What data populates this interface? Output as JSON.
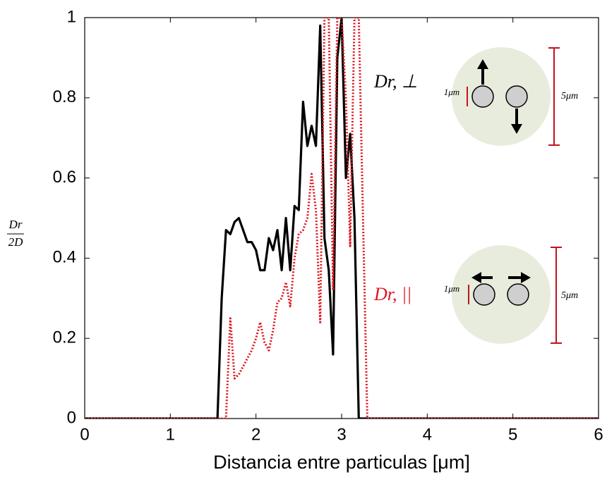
{
  "chart_data": {
    "type": "line",
    "xlabel": "Distancia entre particulas [μm]",
    "ylabel": {
      "numerator": "Dr",
      "denominator": "2D"
    },
    "x": [
      0,
      0.5,
      1,
      1.5,
      1.55,
      1.6,
      1.65,
      1.7,
      1.75,
      1.8,
      1.85,
      1.9,
      1.95,
      2.0,
      2.05,
      2.1,
      2.15,
      2.2,
      2.25,
      2.3,
      2.35,
      2.4,
      2.45,
      2.5,
      2.55,
      2.6,
      2.65,
      2.7,
      2.75,
      2.8,
      2.85,
      2.9,
      2.95,
      3.0,
      3.05,
      3.1,
      3.15,
      3.2,
      3.25,
      3.3,
      4,
      5,
      6
    ],
    "series": [
      {
        "name": "Dr, ⊥",
        "color": "#000000",
        "style": "solid",
        "values": [
          0,
          0,
          0,
          0,
          0,
          0.3,
          0.47,
          0.46,
          0.49,
          0.5,
          0.47,
          0.44,
          0.44,
          0.42,
          0.37,
          0.37,
          0.45,
          0.42,
          0.47,
          0.37,
          0.5,
          0.37,
          0.53,
          0.52,
          0.79,
          0.68,
          0.73,
          0.68,
          0.98,
          0.45,
          0.37,
          0.16,
          0.9,
          1,
          0.6,
          0.71,
          0.5,
          0,
          0,
          0,
          0,
          0,
          0
        ]
      },
      {
        "name": "Dr, ||",
        "color": "#e0141e",
        "style": "dotted",
        "values": [
          0,
          0,
          0,
          0,
          0,
          0,
          0,
          0.25,
          0.1,
          0.11,
          0.13,
          0.15,
          0.17,
          0.2,
          0.24,
          0.19,
          0.17,
          0.22,
          0.29,
          0.3,
          0.34,
          0.28,
          0.4,
          0.46,
          0.47,
          0.5,
          0.61,
          0.52,
          0.24,
          1,
          1,
          0.32,
          1,
          1,
          0.8,
          0.43,
          1,
          1,
          0.5,
          0,
          0,
          0,
          0
        ]
      }
    ],
    "xlim": [
      0,
      6
    ],
    "xticks": [
      0,
      1,
      2,
      3,
      4,
      5,
      6
    ],
    "ylim": [
      0,
      1
    ],
    "yticks": [
      0,
      0.2,
      0.4,
      0.6,
      0.8,
      1
    ],
    "grid": false,
    "annotations": [
      "1μm",
      "5μm",
      "1μm",
      "5μm"
    ]
  }
}
